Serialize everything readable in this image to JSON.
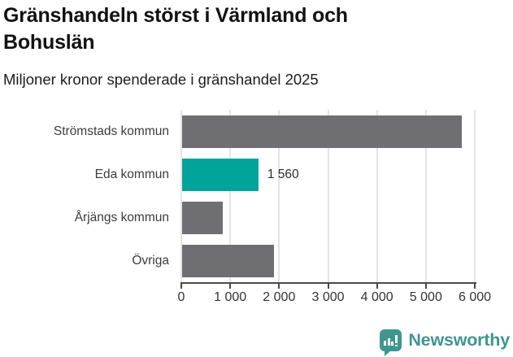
{
  "header": {
    "title": "Gränshandeln störst i Värmland och\nBohuslän",
    "subtitle": "Miljoner kronor spenderade i gränshandel 2025"
  },
  "chart_data": {
    "type": "bar",
    "orientation": "horizontal",
    "title": "Gränshandeln störst i Värmland och Bohuslän",
    "subtitle": "Miljoner kronor spenderade i gränshandel 2025",
    "categories": [
      "Strömstads kommun",
      "Eda kommun",
      "Årjängs kommun",
      "Övriga"
    ],
    "values": [
      5710,
      1560,
      830,
      1880
    ],
    "value_labels": [
      "",
      "1 560",
      "",
      ""
    ],
    "highlight_index": 1,
    "xlim": [
      0,
      6000
    ],
    "x_ticks": [
      0,
      1000,
      2000,
      3000,
      4000,
      5000,
      6000
    ],
    "x_tick_labels": [
      "0",
      "1 000",
      "2 000",
      "3 000",
      "4 000",
      "5 000",
      "6 000"
    ],
    "grid": "vertical-on",
    "legend": "none"
  },
  "colors": {
    "bar_default": "#6e6e73",
    "bar_highlight": "#00a49a",
    "grid": "#e4e4e4",
    "axis": "#4a4a4a",
    "tick_text": "#333333",
    "category_text": "#3c3c3c",
    "title_text": "#121212"
  },
  "footer": {
    "brand": "Newsworthy",
    "brand_color": "#3f968f",
    "logo_icon": "bar-chart-speech-bubble"
  }
}
